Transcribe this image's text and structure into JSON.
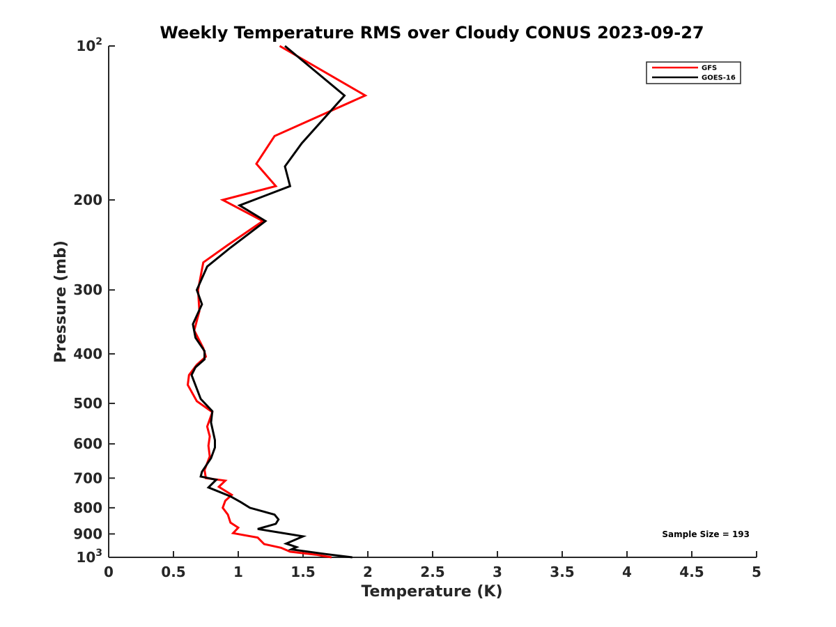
{
  "chart_data": {
    "type": "line",
    "title": "Weekly Temperature RMS over Cloudy CONUS 2023-09-27",
    "xlabel": "Temperature (K)",
    "ylabel": "Pressure (mb)",
    "xlim": [
      0,
      5
    ],
    "ylim": [
      100,
      1000
    ],
    "y_scale": "log",
    "y_reversed": true,
    "grid": false,
    "legend_placement": "top-right",
    "x_ticks": [
      0,
      0.5,
      1,
      1.5,
      2,
      2.5,
      3,
      3.5,
      4,
      4.5,
      5
    ],
    "x_tick_labels": [
      "0",
      "0.5",
      "1",
      "1.5",
      "2",
      "2.5",
      "3",
      "3.5",
      "4",
      "4.5",
      "5"
    ],
    "y_ticks": [
      100,
      200,
      300,
      400,
      500,
      600,
      700,
      800,
      900,
      1000
    ],
    "y_tick_labels": [
      {
        "base": "10",
        "exp": "2"
      },
      {
        "base": "200",
        "exp": ""
      },
      {
        "base": "300",
        "exp": ""
      },
      {
        "base": "400",
        "exp": ""
      },
      {
        "base": "500",
        "exp": ""
      },
      {
        "base": "600",
        "exp": ""
      },
      {
        "base": "700",
        "exp": ""
      },
      {
        "base": "800",
        "exp": ""
      },
      {
        "base": "900",
        "exp": ""
      },
      {
        "base": "10",
        "exp": "3"
      }
    ],
    "annotation": "Sample Size = 193",
    "series": [
      {
        "name": "GFS",
        "color": "#ff0000",
        "points": [
          [
            1.32,
            100
          ],
          [
            1.98,
            125
          ],
          [
            1.28,
            150
          ],
          [
            1.14,
            170
          ],
          [
            1.29,
            188
          ],
          [
            0.88,
            200
          ],
          [
            1.19,
            220
          ],
          [
            0.92,
            245
          ],
          [
            0.73,
            265
          ],
          [
            0.69,
            300
          ],
          [
            0.7,
            330
          ],
          [
            0.66,
            360
          ],
          [
            0.73,
            390
          ],
          [
            0.75,
            405
          ],
          [
            0.68,
            420
          ],
          [
            0.62,
            440
          ],
          [
            0.61,
            460
          ],
          [
            0.68,
            495
          ],
          [
            0.8,
            520
          ],
          [
            0.76,
            555
          ],
          [
            0.78,
            580
          ],
          [
            0.77,
            605
          ],
          [
            0.78,
            635
          ],
          [
            0.74,
            675
          ],
          [
            0.75,
            700
          ],
          [
            0.9,
            708
          ],
          [
            0.85,
            728
          ],
          [
            0.95,
            755
          ],
          [
            0.9,
            775
          ],
          [
            0.88,
            800
          ],
          [
            0.92,
            825
          ],
          [
            0.94,
            855
          ],
          [
            1.0,
            875
          ],
          [
            0.96,
            897
          ],
          [
            1.15,
            915
          ],
          [
            1.2,
            942
          ],
          [
            1.33,
            958
          ],
          [
            1.4,
            975
          ],
          [
            1.6,
            988
          ],
          [
            1.72,
            1000
          ]
        ]
      },
      {
        "name": "GOES-16",
        "color": "#000000",
        "points": [
          [
            1.36,
            100
          ],
          [
            1.82,
            125
          ],
          [
            1.49,
            155
          ],
          [
            1.36,
            172
          ],
          [
            1.4,
            188
          ],
          [
            1.01,
            205
          ],
          [
            1.21,
            220
          ],
          [
            0.94,
            248
          ],
          [
            0.76,
            270
          ],
          [
            0.68,
            300
          ],
          [
            0.72,
            320
          ],
          [
            0.65,
            350
          ],
          [
            0.67,
            372
          ],
          [
            0.74,
            395
          ],
          [
            0.74,
            410
          ],
          [
            0.67,
            425
          ],
          [
            0.64,
            440
          ],
          [
            0.71,
            490
          ],
          [
            0.8,
            518
          ],
          [
            0.79,
            545
          ],
          [
            0.82,
            590
          ],
          [
            0.82,
            610
          ],
          [
            0.79,
            640
          ],
          [
            0.72,
            680
          ],
          [
            0.71,
            695
          ],
          [
            0.83,
            705
          ],
          [
            0.77,
            730
          ],
          [
            0.94,
            760
          ],
          [
            1.02,
            780
          ],
          [
            1.09,
            800
          ],
          [
            1.28,
            825
          ],
          [
            1.31,
            843
          ],
          [
            1.29,
            860
          ],
          [
            1.15,
            880
          ],
          [
            1.5,
            910
          ],
          [
            1.37,
            940
          ],
          [
            1.45,
            955
          ],
          [
            1.41,
            965
          ],
          [
            1.67,
            985
          ],
          [
            1.88,
            1000
          ]
        ]
      }
    ]
  }
}
